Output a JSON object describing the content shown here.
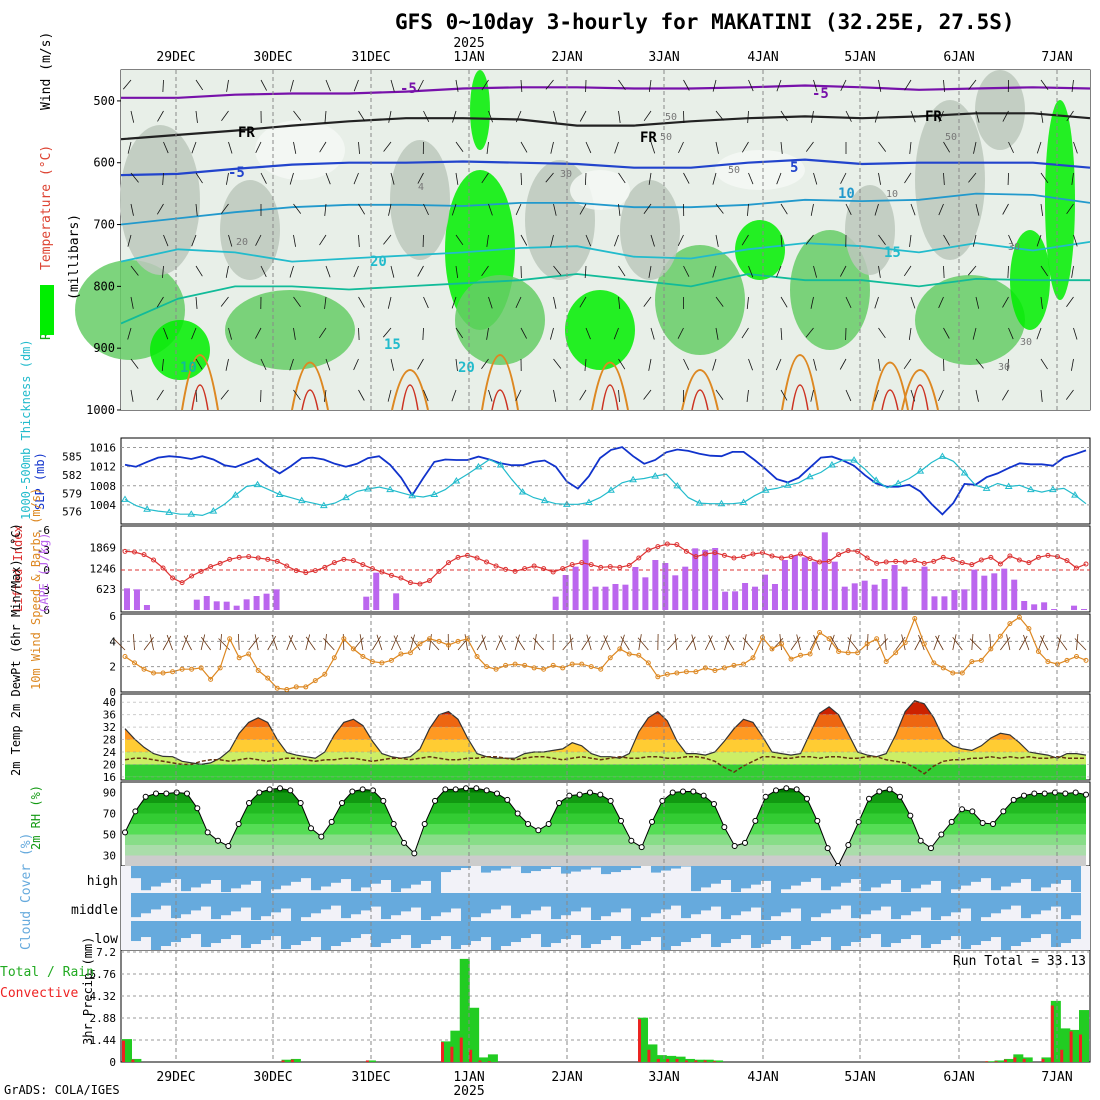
{
  "title": "GFS 0~10day 3-hourly for MAKATINI (32.25E, 27.5S)",
  "footer": "GrADS: COLA/IGES",
  "year_label": "2025",
  "run_total_label": "Run Total = 33.13",
  "colors": {
    "rh_green": "#00ee00",
    "rh_mid": "#66cc66",
    "rh_grey": "#bcc8bc",
    "slp": "#1133cc",
    "thickness": "#22bbcc",
    "lifted_index": "#dd3333",
    "cape": "#bb66ee",
    "wind_speed": "#dd8822",
    "cloud_blue": "#66aadd",
    "precip_total": "#22cc22",
    "precip_conv": "#ee2222"
  },
  "chart_data": [
    {
      "type": "contour",
      "name": "upper-air",
      "xaxis_labels": [
        "29DEC",
        "30DEC",
        "31DEC",
        "1JAN",
        "2JAN",
        "3JAN",
        "4JAN",
        "5JAN",
        "6JAN",
        "7JAN"
      ],
      "ylabel_parts": [
        "RH (%)",
        "Temperature (°C)",
        "Wind (m/s)",
        "(millibars)"
      ],
      "yticks": [
        500,
        600,
        700,
        800,
        900,
        1000
      ],
      "ylim": [
        450,
        1000
      ],
      "contour_labels": [
        "-5",
        "FR",
        "FR",
        "FR",
        "-5",
        "5",
        "10",
        "15",
        "20",
        "-5",
        "10",
        "15",
        "20",
        "4",
        "20",
        "50",
        "50",
        "50",
        "10",
        "30",
        "30",
        "30",
        "30",
        "50"
      ]
    },
    {
      "type": "line",
      "name": "slp-thickness",
      "ylabel_left": "1000-500mb Thickness (dm)",
      "ylabel_right": "SLP (mb)",
      "left_ticks": [
        "585",
        "582",
        "579",
        "576"
      ],
      "right_ticks": [
        "1016",
        "1012",
        "1008",
        "1004"
      ],
      "series": [
        {
          "name": "SLP",
          "values": [
            1012.4,
            1012.0,
            1013.0,
            1013.9,
            1014.2,
            1014.0,
            1013.6,
            1014.2,
            1013.5,
            1012.3,
            1011.9,
            1012.8,
            1013.7,
            1012.0,
            1010.6,
            1012.1,
            1013.8,
            1013.9,
            1013.5,
            1012.6,
            1012.0,
            1012.6,
            1013.8,
            1014.2,
            1012.4,
            1009.7,
            1006.0,
            1009.6,
            1013.0,
            1013.5,
            1013.4,
            1013.4,
            1014.1,
            1013.5,
            1012.7,
            1012.3,
            1012.3,
            1013.0,
            1013.3,
            1012.0,
            1008.9,
            1007.4,
            1010.0,
            1013.8,
            1015.5,
            1016.1,
            1014.2,
            1012.6,
            1013.4,
            1015.0,
            1015.6,
            1015.3,
            1014.7,
            1014.3,
            1014.2,
            1015.1,
            1015.1,
            1013.4,
            1011.5,
            1009.4,
            1008.7,
            1009.7,
            1011.8,
            1013.9,
            1014.1,
            1013.3,
            1012.2,
            1010.2,
            1008.5,
            1007.8,
            1007.8,
            1008.2,
            1006.8,
            1004.2,
            1002.0,
            1004.4,
            1008.4,
            1008.2,
            1009.8,
            1010.6,
            1011.7,
            1012.7,
            1012.5,
            1012.5,
            1012.2,
            1013.9,
            1014.6,
            1015.4
          ]
        },
        {
          "name": "Thickness",
          "values": [
            578.0,
            577.0,
            576.4,
            576.1,
            575.9,
            575.6,
            575.6,
            575.4,
            576.1,
            577.2,
            578.7,
            580.1,
            580.4,
            579.6,
            578.8,
            578.3,
            577.8,
            577.4,
            577.0,
            577.4,
            578.3,
            579.3,
            579.7,
            580.0,
            579.6,
            579.1,
            578.6,
            578.4,
            578.8,
            579.6,
            581.0,
            582.1,
            583.3,
            584.5,
            583.6,
            581.3,
            579.2,
            578.3,
            577.8,
            577.3,
            577.2,
            577.2,
            577.5,
            578.3,
            579.5,
            580.7,
            581.2,
            581.4,
            581.8,
            582.1,
            580.2,
            578.3,
            577.4,
            577.3,
            577.3,
            577.3,
            577.5,
            578.6,
            579.5,
            579.8,
            580.3,
            580.7,
            581.7,
            582.4,
            583.6,
            584.4,
            584.4,
            582.9,
            581.1,
            579.9,
            580.6,
            581.4,
            582.6,
            584.0,
            585.0,
            584.2,
            582.3,
            580.3,
            579.8,
            580.6,
            580.1,
            580.3,
            579.6,
            579.2,
            579.6,
            579.8,
            578.7,
            577.3
          ]
        }
      ]
    },
    {
      "type": "bar+line",
      "name": "cape-lifted-index",
      "ylabel_left": "Lifted Index",
      "ylabel_right": "CAPE (J/kg)",
      "left_ticks": [
        "-6",
        "-3",
        "0",
        "3",
        "6"
      ],
      "right_ticks": [
        "1869",
        "1246",
        "623"
      ],
      "series": [
        {
          "name": "CAPE",
          "values": [
            650,
            620,
            150,
            0,
            0,
            0,
            0,
            310,
            420,
            260,
            250,
            130,
            320,
            420,
            490,
            620,
            0,
            0,
            0,
            0,
            0,
            0,
            0,
            0,
            400,
            1120,
            0,
            500,
            0,
            0,
            0,
            0,
            0,
            0,
            0,
            0,
            0,
            0,
            0,
            0,
            0,
            0,
            0,
            400,
            1050,
            1300,
            2110,
            700,
            700,
            780,
            760,
            1290,
            980,
            1500,
            1410,
            1040,
            1300,
            1850,
            1800,
            1860,
            550,
            560,
            810,
            700,
            1060,
            780,
            1500,
            1640,
            1580,
            1450,
            2330,
            1450,
            700,
            800,
            880,
            760,
            930,
            1350,
            700,
            0,
            1300,
            410,
            410,
            600,
            620,
            1210,
            1030,
            1100,
            1240,
            910,
            270,
            170,
            230,
            30,
            0,
            130,
            30
          ]
        },
        {
          "name": "Lifted Index",
          "values": [
            -2.8,
            -2.7,
            -2.3,
            -1.5,
            -0.3,
            1.2,
            1.9,
            0.9,
            0.2,
            -0.5,
            -1.0,
            -1.6,
            -1.9,
            -2.0,
            -1.8,
            -1.6,
            -1.3,
            -0.6,
            0.1,
            0.4,
            0.1,
            -0.4,
            -1.1,
            -1.6,
            -1.4,
            -0.8,
            -0.2,
            0.3,
            0.8,
            1.2,
            1.9,
            2.1,
            1.6,
            0.2,
            -1.1,
            -1.9,
            -2.2,
            -1.8,
            -1.2,
            -0.6,
            -0.1,
            0.2,
            -0.2,
            -0.6,
            -0.2,
            0.3,
            -0.2,
            -0.8,
            -1.1,
            -0.8,
            -0.4,
            -0.5,
            -0.4,
            -0.7,
            -1.8,
            -3.0,
            -3.5,
            -3.9,
            -3.8,
            -2.8,
            -2.0,
            -2.4,
            -2.6,
            -2.2,
            -1.8,
            -2.0,
            -2.4,
            -2.6,
            -2.1,
            -1.8,
            -2.0,
            -2.4,
            -1.7,
            -1.2,
            -1.3,
            -2.3,
            -2.9,
            -2.8,
            -1.8,
            -1.0,
            -1.2,
            -1.3,
            -1.2,
            -1.4,
            -1.0,
            -1.3,
            -1.9,
            -1.6,
            -1.1,
            -0.8,
            -1.5,
            -1.9,
            -0.9,
            -2.1,
            -1.5,
            -1.1,
            -1.9,
            -2.2,
            -2.0,
            -1.4,
            -0.3,
            -0.9
          ]
        }
      ]
    },
    {
      "type": "line",
      "name": "10m-wind",
      "ylabel": "10m Wind Speed & Barbs (m/s)",
      "yticks": [
        "6",
        "4",
        "2",
        "0"
      ],
      "values": [
        2.8,
        2.3,
        1.8,
        1.5,
        1.5,
        1.6,
        1.8,
        1.8,
        1.9,
        1.0,
        1.9,
        4.2,
        2.7,
        3.0,
        1.7,
        1.1,
        0.3,
        0.2,
        0.4,
        0.4,
        0.9,
        1.4,
        2.7,
        4.2,
        3.4,
        2.8,
        2.4,
        2.3,
        2.5,
        3.0,
        3.1,
        3.8,
        4.2,
        4.0,
        3.7,
        4.0,
        4.2,
        2.8,
        2.0,
        1.8,
        2.1,
        2.2,
        2.1,
        1.9,
        1.8,
        2.1,
        1.9,
        2.2,
        2.2,
        2.0,
        1.8,
        2.7,
        3.4,
        3.0,
        2.9,
        2.3,
        1.2,
        1.4,
        1.5,
        1.6,
        1.6,
        1.9,
        1.7,
        1.9,
        2.1,
        2.2,
        2.7,
        4.3,
        3.4,
        3.8,
        2.6,
        2.9,
        3.0,
        4.7,
        4.2,
        3.2,
        3.1,
        3.1,
        3.8,
        4.2,
        2.4,
        3.1,
        3.9,
        5.8,
        3.8,
        2.3,
        1.9,
        1.5,
        1.5,
        2.4,
        2.5,
        3.4,
        4.4,
        5.4,
        5.9,
        5.0,
        3.2,
        2.4,
        2.2,
        2.5,
        2.8,
        2.5
      ]
    },
    {
      "type": "area",
      "name": "2m-temp",
      "ylabel": "2m Temp 2m DewPt (6hr Min/Max) (°C)",
      "yticks": [
        "40",
        "36",
        "32",
        "28",
        "24",
        "20",
        "16"
      ],
      "temp": [
        31.5,
        28.2,
        25.5,
        23.5,
        22.6,
        22.5,
        21.0,
        20.5,
        20.0,
        20.5,
        22.0,
        24.5,
        30.0,
        33.5,
        35.0,
        33.5,
        28.0,
        23.8,
        23.0,
        22.5,
        22.0,
        24.0,
        29.5,
        33.5,
        34.5,
        32.5,
        27.5,
        23.5,
        22.5,
        22.0,
        22.5,
        25.0,
        31.5,
        36.0,
        37.0,
        34.5,
        28.5,
        23.5,
        22.5,
        22.0,
        22.0,
        22.0,
        23.5,
        24.0,
        24.0,
        24.5,
        25.0,
        27.0,
        26.0,
        23.5,
        22.5,
        22.5,
        22.0,
        23.5,
        30.5,
        35.0,
        37.0,
        34.0,
        27.5,
        23.5,
        23.5,
        23.0,
        24.0,
        27.5,
        31.5,
        34.5,
        33.5,
        29.0,
        24.0,
        23.5,
        23.0,
        23.5,
        30.0,
        36.5,
        38.5,
        36.0,
        30.0,
        24.0,
        23.0,
        22.5,
        23.5,
        29.5,
        37.0,
        40.5,
        39.5,
        35.0,
        28.5,
        26.0,
        25.0,
        24.5,
        26.0,
        28.5,
        30.0,
        29.5,
        27.0,
        24.0,
        23.5,
        23.0,
        22.0,
        23.5,
        23.5,
        23.0
      ],
      "dewpoint": [
        21.5,
        22.0,
        22.0,
        21.5,
        21.0,
        20.5,
        20.0,
        20.0,
        21.0,
        21.5,
        21.5,
        21.0,
        21.5,
        22.0,
        21.5,
        21.0,
        21.5,
        22.0,
        22.0,
        21.5,
        21.0,
        21.5,
        21.5,
        22.0,
        22.0,
        21.5,
        21.0,
        21.5,
        22.0,
        22.0,
        21.5,
        22.0,
        22.5,
        22.0,
        21.5,
        21.5,
        22.0,
        22.0,
        22.5,
        22.5,
        22.0,
        21.5,
        22.0,
        22.5,
        22.5,
        22.0,
        21.5,
        22.0,
        22.5,
        22.0,
        21.5,
        22.0,
        22.5,
        22.0,
        22.0,
        22.5,
        22.5,
        22.0,
        22.0,
        22.5,
        22.5,
        22.0,
        21.0,
        19.0,
        17.5,
        19.5,
        21.0,
        22.5,
        22.5,
        22.0,
        22.0,
        22.5,
        22.5,
        22.0,
        22.5,
        22.5,
        22.0,
        22.0,
        22.5,
        22.5,
        21.5,
        21.0,
        20.5,
        19.0,
        17.0,
        19.5,
        21.0,
        21.5,
        21.5,
        22.0,
        22.0,
        22.5,
        22.0,
        22.5,
        22.0,
        22.5,
        22.0,
        22.0,
        22.5,
        22.0,
        22.0,
        22.0
      ]
    },
    {
      "type": "area",
      "name": "2m-rh",
      "ylabel": "2m RH (%)",
      "yticks": [
        "90",
        "70",
        "50",
        "30"
      ],
      "values": [
        52,
        72,
        86,
        89,
        89,
        90,
        89,
        75,
        52,
        44,
        39,
        60,
        80,
        90,
        93,
        94,
        92,
        80,
        56,
        48,
        62,
        80,
        91,
        93,
        92,
        82,
        60,
        42,
        32,
        60,
        82,
        93,
        93,
        94,
        94,
        92,
        89,
        83,
        70,
        60,
        54,
        60,
        80,
        87,
        88,
        90,
        88,
        82,
        63,
        44,
        38,
        62,
        82,
        90,
        91,
        91,
        87,
        79,
        57,
        39,
        42,
        63,
        86,
        92,
        94,
        93,
        84,
        63,
        37,
        20,
        40,
        62,
        84,
        91,
        93,
        86,
        68,
        44,
        37,
        50,
        62,
        74,
        72,
        61,
        60,
        72,
        83,
        87,
        89,
        89,
        90,
        89,
        90,
        88
      ]
    },
    {
      "type": "area",
      "name": "cloud-cover",
      "ylabel": "Cloud Cover (%)",
      "layer_labels": [
        "high",
        "middle",
        "low"
      ]
    },
    {
      "type": "bar",
      "name": "precip",
      "ylabel": "3hr Precip (mm)",
      "left_caption_1": "Total / Rain",
      "left_caption_2": "Convective",
      "yticks": [
        "7.2",
        "5.76",
        "4.32",
        "2.88",
        "1.44",
        "0"
      ],
      "total": [
        1.5,
        0.2,
        0,
        0,
        0,
        0,
        0,
        0,
        0,
        0,
        0,
        0,
        0,
        0,
        0,
        0,
        0,
        0.15,
        0.2,
        0,
        0,
        0,
        0,
        0,
        0,
        0,
        0.1,
        0,
        0,
        0,
        0,
        0,
        0,
        0,
        1.35,
        2.05,
        6.75,
        3.55,
        0.3,
        0.5,
        0,
        0,
        0,
        0,
        0,
        0,
        0,
        0,
        0,
        0,
        0,
        0,
        0,
        0,
        0,
        2.9,
        1.15,
        0.45,
        0.4,
        0.35,
        0.2,
        0.15,
        0.15,
        0.1,
        0,
        0,
        0,
        0,
        0,
        0,
        0,
        0,
        0,
        0,
        0,
        0,
        0,
        0,
        0,
        0,
        0,
        0,
        0,
        0,
        0,
        0,
        0,
        0,
        0,
        0,
        0,
        0,
        0.05,
        0.1,
        0.2,
        0.5,
        0.3,
        0,
        0.3,
        4.0,
        2.2,
        2.1,
        3.4
      ],
      "convective": [
        1.4,
        0.15,
        0,
        0,
        0,
        0,
        0,
        0,
        0,
        0,
        0,
        0,
        0,
        0,
        0,
        0,
        0,
        0.1,
        0.15,
        0,
        0,
        0,
        0,
        0,
        0,
        0,
        0.1,
        0,
        0,
        0,
        0,
        0,
        0,
        0,
        1.3,
        1.0,
        1.6,
        0.8,
        0.1,
        0.05,
        0,
        0,
        0,
        0,
        0,
        0,
        0,
        0,
        0,
        0,
        0,
        0,
        0,
        0,
        0,
        2.8,
        0.8,
        0.2,
        0.2,
        0.2,
        0.1,
        0.1,
        0.1,
        0.05,
        0,
        0,
        0,
        0,
        0,
        0,
        0,
        0,
        0,
        0,
        0,
        0,
        0,
        0,
        0,
        0,
        0,
        0,
        0,
        0,
        0,
        0,
        0,
        0,
        0,
        0,
        0,
        0,
        0.05,
        0.05,
        0.15,
        0.3,
        0.2,
        0,
        0.2,
        3.7,
        0.8,
        2.0,
        1.8
      ]
    }
  ]
}
